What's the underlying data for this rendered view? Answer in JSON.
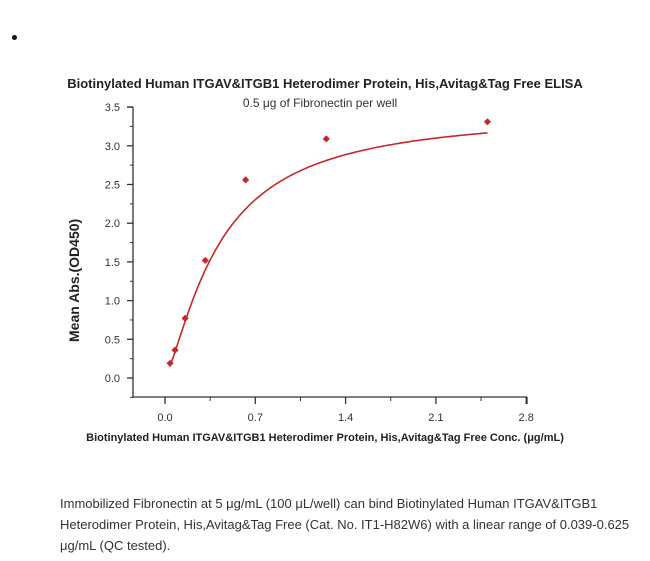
{
  "page": {
    "bullet": "•",
    "caption": "Immobilized Fibronectin at 5 μg/mL (100 μL/well) can bind Biotinylated Human ITGAV&ITGB1 Heterodimer Protein, His,Avitag&Tag Free (Cat. No. IT1-H82W6) with a linear range of 0.039-0.625 μg/mL (QC tested)."
  },
  "chart_data": {
    "type": "scatter",
    "title": "Biotinylated Human ITGAV&ITGB1 Heterodimer Protein, His,Avitag&Tag Free ELISA",
    "subtitle": "0.5 μg of Fibronectin per well",
    "xlabel": "Biotinylated Human ITGAV&ITGB1 Heterodimer Protein, His,Avitag&Tag Free Conc. (μg/mL)",
    "ylabel": "Mean Abs.(OD450)",
    "xlim": [
      -0.25,
      2.8
    ],
    "ylim": [
      -0.25,
      3.5
    ],
    "xticks": [
      "0.0",
      "0.7",
      "1.4",
      "2.1",
      "2.8"
    ],
    "yticks": [
      "0.0",
      "0.5",
      "1.0",
      "1.5",
      "2.0",
      "2.5",
      "3.0",
      "3.5"
    ],
    "grid": false,
    "legend": null,
    "series": [
      {
        "name": "Mean Abs.(OD450)",
        "marker": "diamond",
        "color": "#c62828",
        "fit_line": "4-parameter logistic curve",
        "x": [
          0.039,
          0.078,
          0.156,
          0.3125,
          0.625,
          1.25,
          2.5
        ],
        "y": [
          0.19,
          0.36,
          0.77,
          1.52,
          2.56,
          3.09,
          3.31
        ]
      }
    ]
  }
}
